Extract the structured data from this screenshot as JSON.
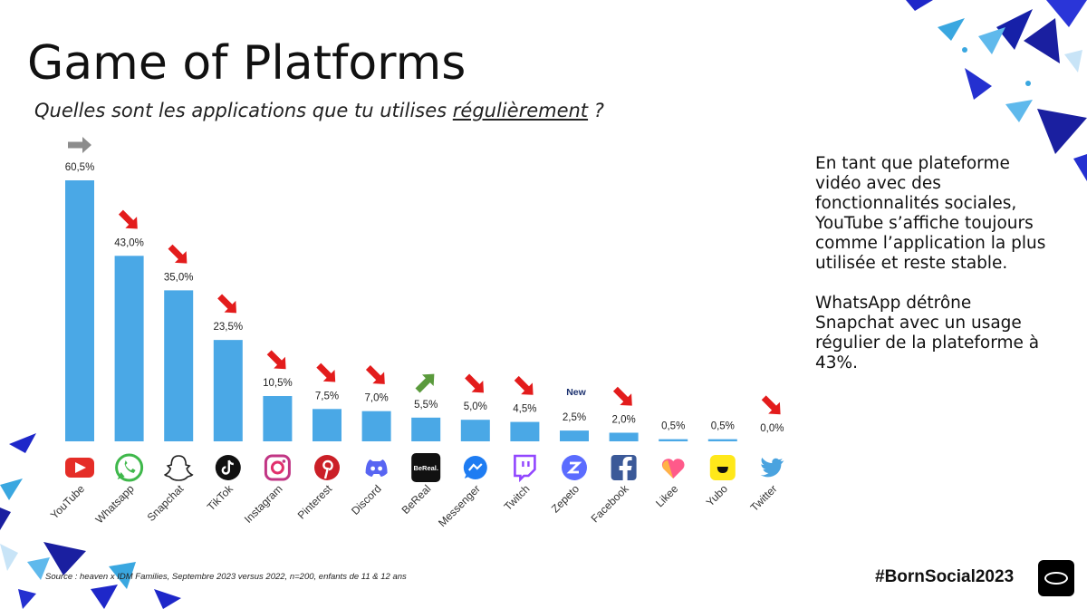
{
  "title": "Game of Platforms",
  "question_prefix": "Quelles sont les applications que tu utilises ",
  "question_emphasis": "régulièrement",
  "question_suffix": " ?",
  "side_text": [
    "En tant que plateforme vidéo avec des fonctionnalités sociales, YouTube s’affiche toujours comme l’application la plus utilisée et reste stable.",
    "WhatsApp détrône Snapchat avec un usage régulier de la plateforme à 43%."
  ],
  "source": "Source : heaven x IDM Families, Septembre 2023  versus 2022,  n=200, enfants de 11 & 12 ans",
  "hashtag": "#BornSocial2023",
  "colors": {
    "bar": "#4aa8e6",
    "arrow_down": "#e31c1c",
    "arrow_up": "#5a9a3c",
    "arrow_flat": "#8c8c8c"
  },
  "chart_data": {
    "type": "bar",
    "categories": [
      "YouTube",
      "Whatsapp",
      "Snapchat",
      "TikTok",
      "Instagram",
      "Pinterest",
      "Discord",
      "BeReal",
      "Messenger",
      "Twitch",
      "Zepeto",
      "Facebook",
      "Likee",
      "Yubo",
      "Twitter"
    ],
    "values": [
      60.5,
      43.0,
      35.0,
      23.5,
      10.5,
      7.5,
      7.0,
      5.5,
      5.0,
      4.5,
      2.5,
      2.0,
      0.5,
      0.5,
      0.0
    ],
    "value_labels": [
      "60,5%",
      "43,0%",
      "35,0%",
      "23,5%",
      "10,5%",
      "7,5%",
      "7,0%",
      "5,5%",
      "5,0%",
      "4,5%",
      "2,5%",
      "2,0%",
      "0,5%",
      "0,5%",
      "0,0%"
    ],
    "trend": [
      "flat",
      "down",
      "down",
      "down",
      "down",
      "down",
      "down",
      "up",
      "down",
      "down",
      "new",
      "down",
      "none",
      "none",
      "down"
    ],
    "new_label": "New",
    "icons": [
      "youtube-icon",
      "whatsapp-icon",
      "snapchat-icon",
      "tiktok-icon",
      "instagram-icon",
      "pinterest-icon",
      "discord-icon",
      "bereal-icon",
      "messenger-icon",
      "twitch-icon",
      "zepeto-icon",
      "facebook-icon",
      "likee-icon",
      "yubo-icon",
      "twitter-icon"
    ],
    "bereal_icon_text": "BeReal.",
    "ylim": [
      0,
      60.5
    ],
    "grid": false,
    "legend": "none"
  }
}
